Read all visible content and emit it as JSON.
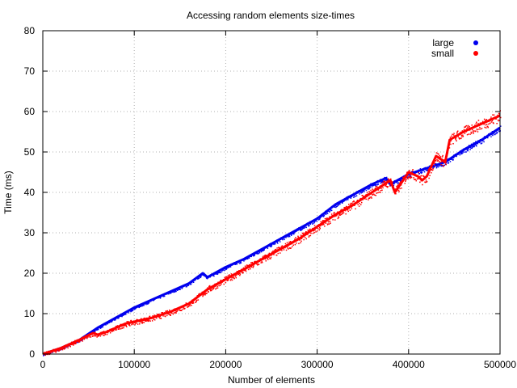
{
  "chart_data": {
    "type": "scatter",
    "title": "Accessing random elements size-times",
    "xlabel": "Number of elements",
    "ylabel": "Time (ms)",
    "xlim": [
      0,
      500000
    ],
    "ylim": [
      0,
      80
    ],
    "x_ticks": [
      0,
      100000,
      200000,
      300000,
      400000,
      500000
    ],
    "y_ticks": [
      0,
      10,
      20,
      30,
      40,
      50,
      60,
      70,
      80
    ],
    "grid": true,
    "legend_position": "top-right",
    "series": [
      {
        "name": "large",
        "color": "#0000ee",
        "x": [
          0,
          20000,
          40000,
          60000,
          80000,
          100000,
          120000,
          140000,
          160000,
          175000,
          180000,
          200000,
          220000,
          240000,
          260000,
          280000,
          300000,
          320000,
          340000,
          360000,
          375000,
          380000,
          400000,
          420000,
          440000,
          460000,
          480000,
          500000
        ],
        "y": [
          0,
          1.5,
          3.5,
          6.5,
          9,
          11.5,
          13.5,
          15.5,
          17.5,
          20,
          19,
          21.5,
          23.5,
          26,
          28.5,
          31,
          33.5,
          37,
          39.5,
          42,
          43.5,
          42,
          44.5,
          46,
          47.5,
          50.5,
          53,
          56
        ]
      },
      {
        "name": "small",
        "color": "#ff0000",
        "x": [
          0,
          20000,
          40000,
          55000,
          60000,
          70000,
          80000,
          90000,
          100000,
          120000,
          140000,
          160000,
          180000,
          200000,
          220000,
          240000,
          260000,
          280000,
          300000,
          320000,
          340000,
          360000,
          380000,
          385000,
          400000,
          410000,
          415000,
          420000,
          430000,
          440000,
          445000,
          460000,
          480000,
          500000
        ],
        "y": [
          0,
          1.5,
          3.5,
          5.2,
          4.8,
          5.5,
          6.5,
          7.5,
          8,
          9,
          10.5,
          12.5,
          16,
          18.5,
          21,
          23.5,
          26,
          28.5,
          31.5,
          34.5,
          37,
          40,
          43,
          40,
          45,
          44,
          43,
          44,
          49,
          47.5,
          53,
          55,
          57,
          59
        ]
      }
    ]
  }
}
